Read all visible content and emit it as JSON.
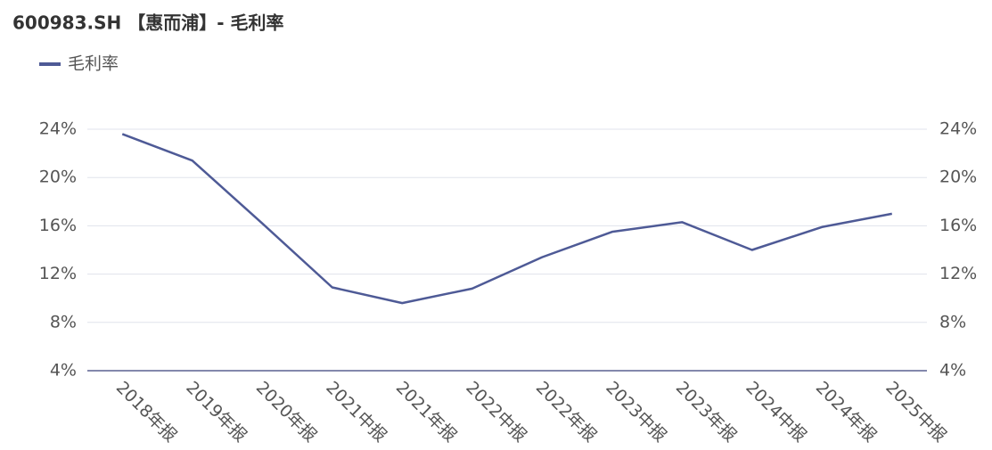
{
  "chart_data": {
    "type": "line",
    "title": "600983.SH 【惠而浦】- 毛利率",
    "categories": [
      "2018年报",
      "2019年报",
      "2020年报",
      "2021中报",
      "2021年报",
      "2022中报",
      "2022年报",
      "2023中报",
      "2023年报",
      "2024中报",
      "2024年报",
      "2025中报"
    ],
    "series": [
      {
        "name": "毛利率",
        "color": "#4e5a96",
        "values": [
          23.6,
          21.4,
          16.2,
          10.9,
          9.6,
          10.8,
          13.4,
          15.5,
          16.3,
          14.0,
          15.9,
          17.0
        ]
      }
    ],
    "ylim": [
      4,
      24
    ],
    "yticks": [
      {
        "value": 4,
        "label": "4%"
      },
      {
        "value": 8,
        "label": "8%"
      },
      {
        "value": 12,
        "label": "12%"
      },
      {
        "value": 16,
        "label": "16%"
      },
      {
        "value": 20,
        "label": "20%"
      },
      {
        "value": 24,
        "label": "24%"
      }
    ],
    "y2lim": [
      4,
      24
    ],
    "y2ticks": [
      {
        "value": 4,
        "label": "4%"
      },
      {
        "value": 8,
        "label": "8%"
      },
      {
        "value": 12,
        "label": "12%"
      },
      {
        "value": 16,
        "label": "16%"
      },
      {
        "value": 20,
        "label": "20%"
      },
      {
        "value": 24,
        "label": "24%"
      }
    ],
    "grid": true,
    "legend": "top-left"
  }
}
